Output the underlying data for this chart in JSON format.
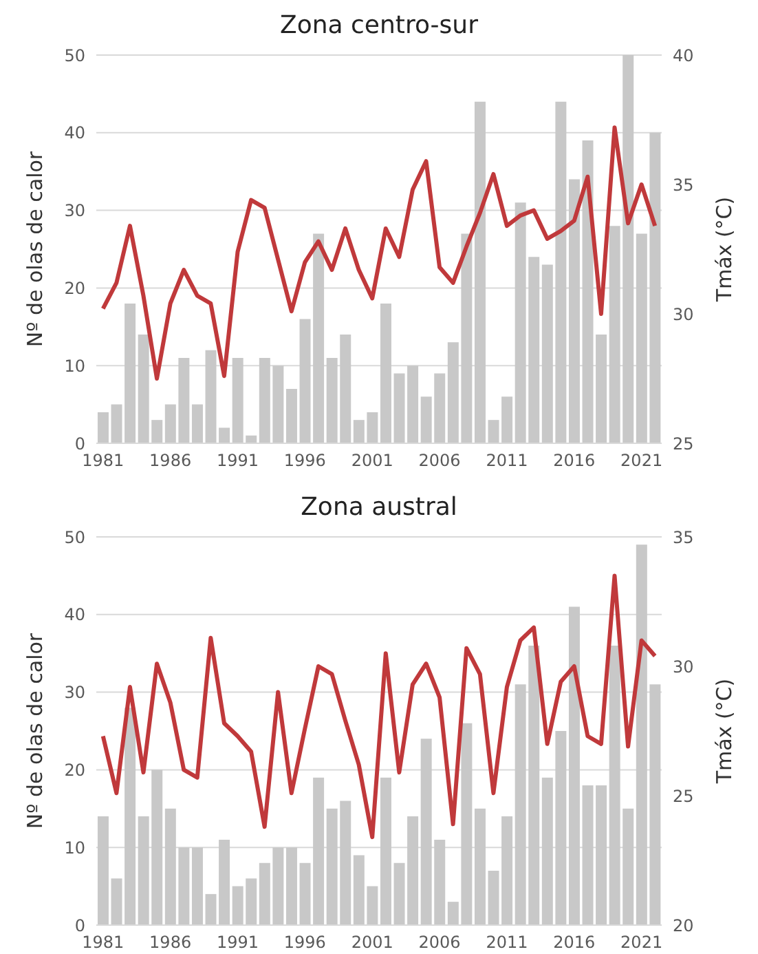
{
  "chart_data": [
    {
      "type": "bar",
      "title": "Zona centro-sur",
      "ylabel": "Nº de olas de calor",
      "y2label": "Tmáx (°C)",
      "categories": [
        "1981",
        null,
        null,
        null,
        null,
        "1986",
        null,
        null,
        null,
        null,
        "1991",
        null,
        null,
        null,
        null,
        "1996",
        null,
        null,
        null,
        null,
        "2001",
        null,
        null,
        null,
        null,
        "2006",
        null,
        null,
        null,
        null,
        "2011",
        null,
        null,
        null,
        null,
        "2016",
        null,
        null,
        null,
        null,
        "2021",
        null
      ],
      "series": [
        {
          "color": "#c8c8c8",
          "values": [
            4,
            5,
            18,
            14,
            3,
            5,
            11,
            5,
            12,
            2,
            11,
            1,
            11,
            10,
            7,
            16,
            27,
            11,
            14,
            3,
            4,
            18,
            9,
            10,
            6,
            9,
            13,
            27,
            44,
            3,
            6,
            31,
            24,
            23,
            44,
            34,
            39,
            14,
            28,
            50,
            27,
            40
          ]
        },
        {
          "type": "line",
          "axis": "y2",
          "color": "#c0393b",
          "values": [
            30.2,
            31.2,
            33.4,
            30.7,
            27.5,
            30.4,
            31.7,
            30.7,
            30.4,
            27.6,
            32.4,
            34.4,
            34.1,
            32.1,
            30.1,
            32.0,
            32.8,
            31.7,
            33.3,
            31.7,
            30.6,
            33.3,
            32.2,
            34.8,
            35.9,
            31.8,
            31.2,
            32.6,
            33.9,
            35.4,
            33.4,
            33.8,
            34.0,
            32.9,
            33.2,
            33.6,
            35.3,
            30.0,
            37.2,
            33.5,
            35.0,
            33.4
          ]
        }
      ],
      "ylim": [
        0,
        50
      ],
      "yticks": [
        0,
        10,
        20,
        30,
        40,
        50
      ],
      "y2lim": [
        25,
        40
      ],
      "y2ticks": [
        25,
        30,
        35,
        40
      ],
      "grid": "y"
    },
    {
      "type": "bar",
      "title": "Zona austral",
      "ylabel": "Nº de olas de calor",
      "y2label": "Tmáx (°C)",
      "categories": [
        "1981",
        null,
        null,
        null,
        null,
        "1986",
        null,
        null,
        null,
        null,
        "1991",
        null,
        null,
        null,
        null,
        "1996",
        null,
        null,
        null,
        null,
        "2001",
        null,
        null,
        null,
        null,
        "2006",
        null,
        null,
        null,
        null,
        "2011",
        null,
        null,
        null,
        null,
        "2016",
        null,
        null,
        null,
        null,
        "2021",
        null
      ],
      "series": [
        {
          "color": "#c8c8c8",
          "values": [
            14,
            6,
            28,
            14,
            20,
            15,
            10,
            10,
            4,
            11,
            5,
            6,
            8,
            10,
            10,
            8,
            19,
            15,
            16,
            9,
            5,
            19,
            8,
            14,
            24,
            11,
            3,
            26,
            15,
            7,
            14,
            31,
            36,
            19,
            25,
            41,
            18,
            18,
            36,
            15,
            49,
            31
          ]
        },
        {
          "type": "line",
          "axis": "y2",
          "color": "#c0393b",
          "values": [
            27.3,
            25.1,
            29.2,
            25.9,
            30.1,
            28.6,
            26.0,
            25.7,
            31.1,
            27.8,
            27.3,
            26.7,
            23.8,
            29.0,
            25.1,
            27.6,
            30.0,
            29.7,
            27.9,
            26.2,
            23.4,
            30.5,
            25.9,
            29.3,
            30.1,
            28.8,
            23.9,
            30.7,
            29.7,
            25.1,
            29.2,
            31.0,
            31.5,
            27.0,
            29.4,
            30.0,
            27.3,
            27.0,
            33.5,
            26.9,
            31.0,
            30.4
          ]
        }
      ],
      "ylim": [
        0,
        50
      ],
      "yticks": [
        0,
        10,
        20,
        30,
        40,
        50
      ],
      "y2lim": [
        20,
        35
      ],
      "y2ticks": [
        20,
        25,
        30,
        35
      ],
      "grid": "y"
    }
  ]
}
